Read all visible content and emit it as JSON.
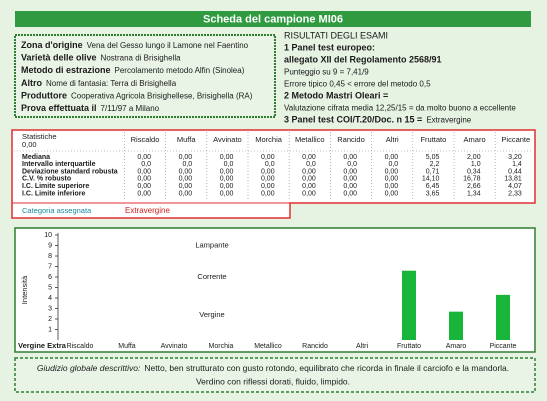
{
  "header": {
    "title": "Scheda del campione MI06"
  },
  "info": [
    {
      "label": "Zona d'origine",
      "value": "Vena del Gesso lungo il Lamone nel Faentino"
    },
    {
      "label": "Varietà delle olive",
      "value": "Nostrana di Brisighella"
    },
    {
      "label": "Metodo di estrazione",
      "value": "Percolamento metodo Alfin (Sinolea)"
    },
    {
      "label": "Altro",
      "value": "Nome di fantasia: Terra di Brisighella"
    },
    {
      "label": "Produttore",
      "value": "Cooperativa Agricola Brisighellese, Brisighella (RA)"
    },
    {
      "label": "Prova effettuata il",
      "value": "7/11/97 a Milano"
    }
  ],
  "results": {
    "title": "RISULTATI DEGLI ESAMI",
    "lines": [
      [
        {
          "text": "1 Panel test europeo:",
          "bold": true
        }
      ],
      [
        {
          "text": "allegato XII del Regolamento 2568/91",
          "bold": true
        }
      ],
      [
        {
          "text": "Punteggio su 9 = 7,41/9",
          "bold": false
        }
      ],
      [
        {
          "text": "Errore tipico 0,45 < errore del metodo 0,5",
          "bold": false
        }
      ],
      [
        {
          "text": "2 Metodo Mastri Oleari =",
          "bold": true
        }
      ],
      [
        {
          "text": "Valutazione cifrata media 12,25/15 = da molto buono a eccellente",
          "bold": false
        }
      ],
      [
        {
          "text": "3 Panel test COI/T.20/Doc. n 15 =",
          "bold": true
        },
        {
          "text": "Extravergine",
          "bold": false
        }
      ]
    ]
  },
  "table": {
    "corner": [
      "Statistiche",
      "0,00"
    ],
    "columns": [
      "Riscaldo",
      "Muffa",
      "Avvinato",
      "Morchia",
      "Metallico",
      "Rancido",
      "Altri",
      "Fruttato",
      "Amaro",
      "Piccante"
    ],
    "rows": [
      {
        "label": "Mediana",
        "cells": [
          "0,00",
          "0,00",
          "0,00",
          "0,00",
          "0,00",
          "0,00",
          "0,00",
          "5,05",
          "2,00",
          "3,20"
        ]
      },
      {
        "label": "Intervallo interquartile",
        "cells": [
          "0,0",
          "0,0",
          "0,0",
          "0,0",
          "0,0",
          "0,0",
          "0,0",
          "2,2",
          "1,0",
          "1,4"
        ]
      },
      {
        "label": "Deviazione standard robusta",
        "cells": [
          "0,00",
          "0,00",
          "0,00",
          "0,00",
          "0,00",
          "0,00",
          "0,00",
          "0,71",
          "0,34",
          "0,44"
        ]
      },
      {
        "label": "C.V. % robusto",
        "cells": [
          "0,00",
          "0,00",
          "0,00",
          "0,00",
          "0,00",
          "0,00",
          "0,00",
          "14,10",
          "16,78",
          "13,81"
        ]
      },
      {
        "label": "I.C. Limite superiore",
        "cells": [
          "0,00",
          "0,00",
          "0,00",
          "0,00",
          "0,00",
          "0,00",
          "0,00",
          "6,45",
          "2,66",
          "4,07"
        ]
      },
      {
        "label": "I.C. Limite inferiore",
        "cells": [
          "0,00",
          "0,00",
          "0,00",
          "0,00",
          "0,00",
          "0,00",
          "0,00",
          "3,65",
          "1,34",
          "2,33"
        ]
      }
    ],
    "category_label": "Categoria assegnata",
    "category_value": "Extravergine"
  },
  "chart_data": {
    "type": "bar",
    "y_label": "Intensità",
    "x_origin_label": "Vergine Extra",
    "categories": [
      "Riscaldo",
      "Muffa",
      "Avvinato",
      "Morchia",
      "Metallico",
      "Rancido",
      "Altri",
      "Fruttato",
      "Amaro",
      "Piccante"
    ],
    "values": [
      0,
      0,
      0,
      0,
      0,
      0,
      0,
      6.6,
      2.7,
      4.3
    ],
    "color": "#19b53a",
    "ylim": [
      0,
      10
    ],
    "yticks": [
      1,
      2,
      3,
      4,
      5,
      6,
      7,
      8,
      9,
      10
    ],
    "annotations": [
      {
        "text": "Lampante",
        "y": 9
      },
      {
        "text": "Corrente",
        "y": 6
      },
      {
        "text": "Vergine",
        "y": 2.4
      }
    ]
  },
  "footer": {
    "label": "Giudizio globale descrittivo:",
    "lines": [
      "Netto, ben strutturato con gusto rotondo, equilibrato che ricorda in finale il carciofo e la mandorla.",
      "Verdino con riflessi dorati, fluido, limpido."
    ]
  }
}
